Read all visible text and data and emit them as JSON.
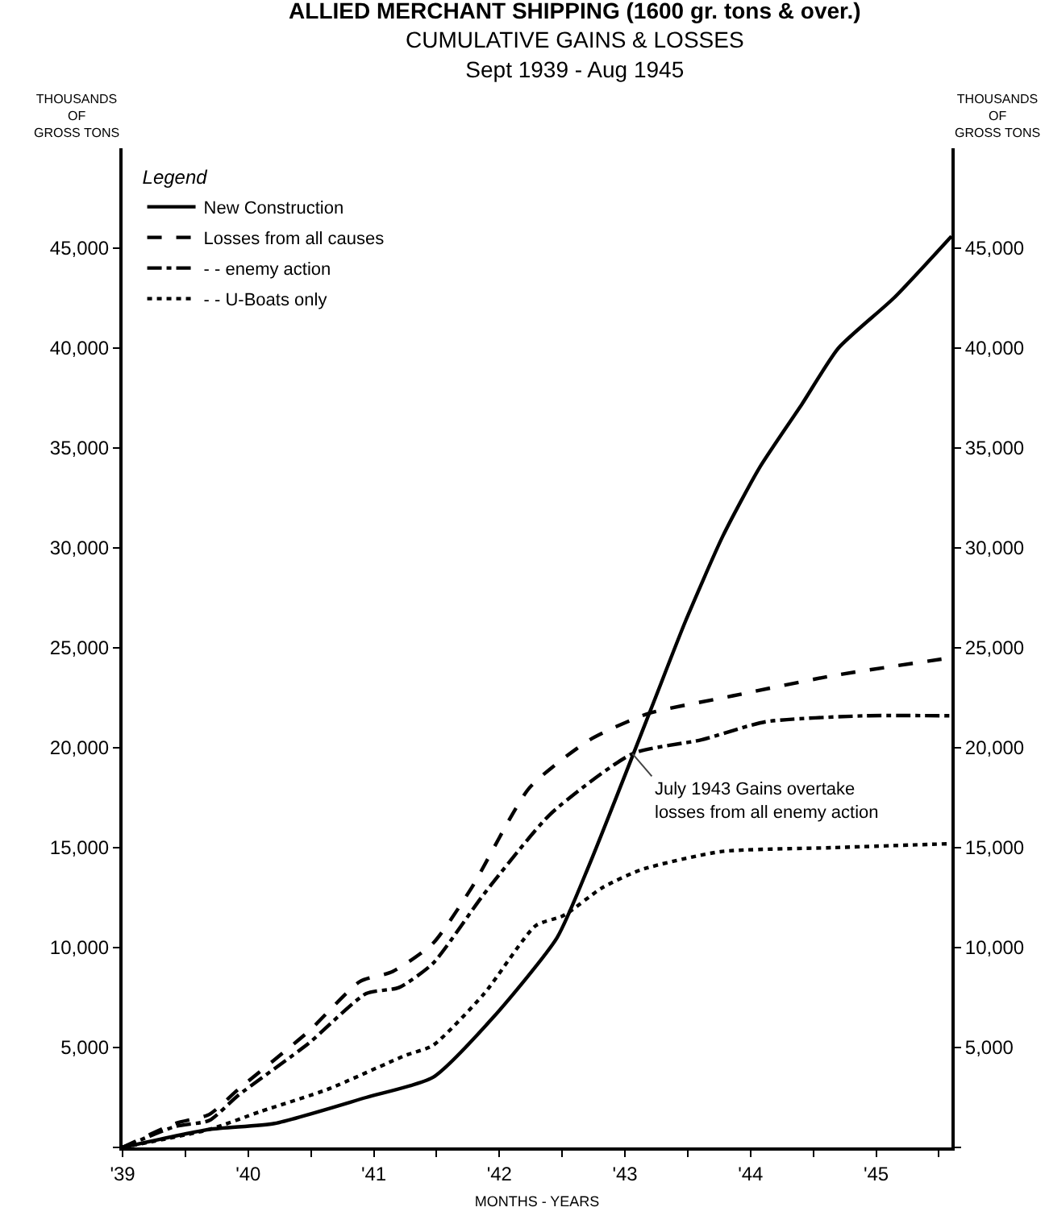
{
  "chart_data": {
    "type": "line",
    "title": "ALLIED MERCHANT SHIPPING (1600 gr. tons & over.)",
    "subtitle": "CUMULATIVE GAINS & LOSSES\nSept 1939 - Aug 1945",
    "xlabel": "MONTHS - YEARS",
    "ylabel": "THOUSANDS\nOF\nGROSS TONS",
    "y2label": "THOUSANDS\nOF\nGROSS TONS",
    "legend_title": "Legend",
    "legend": "top left",
    "grid": false,
    "marker": "none",
    "annotations": [
      {
        "text": "July 1943 Gains overtake\nlosses from all enemy action",
        "x": 1943.06,
        "y": 19700
      }
    ],
    "xlim": [
      1939,
      1945.6
    ],
    "xticks": [
      {
        "value": 1939,
        "label": "'39"
      },
      {
        "value": 1939.5,
        "label": null
      },
      {
        "value": 1940,
        "label": "'40"
      },
      {
        "value": 1940.5,
        "label": null
      },
      {
        "value": 1941,
        "label": "'41"
      },
      {
        "value": 1941.5,
        "label": null
      },
      {
        "value": 1942,
        "label": "'42"
      },
      {
        "value": 1942.5,
        "label": null
      },
      {
        "value": 1943,
        "label": "'43"
      },
      {
        "value": 1943.5,
        "label": null
      },
      {
        "value": 1944,
        "label": "'44"
      },
      {
        "value": 1944.5,
        "label": null
      },
      {
        "value": 1945,
        "label": "'45"
      },
      {
        "value": 1945.5,
        "label": null
      }
    ],
    "ylim": [
      0,
      50000
    ],
    "yticks": [
      {
        "value": 0,
        "label": null
      },
      {
        "value": 5000,
        "label": "5,000"
      },
      {
        "value": 10000,
        "label": "10,000"
      },
      {
        "value": 15000,
        "label": "15,000"
      },
      {
        "value": 20000,
        "label": "20,000"
      },
      {
        "value": 25000,
        "label": "25,000"
      },
      {
        "value": 30000,
        "label": "30,000"
      },
      {
        "value": 35000,
        "label": "35,000"
      },
      {
        "value": 40000,
        "label": "40,000"
      },
      {
        "value": 45000,
        "label": "45,000"
      }
    ],
    "y2lim": [
      0,
      50000
    ],
    "y2ticks": [
      {
        "value": 0,
        "label": null
      },
      {
        "value": 5000,
        "label": "5,000"
      },
      {
        "value": 10000,
        "label": "10,000"
      },
      {
        "value": 15000,
        "label": "15,000"
      },
      {
        "value": 20000,
        "label": "20,000"
      },
      {
        "value": 25000,
        "label": "25,000"
      },
      {
        "value": 30000,
        "label": "30,000"
      },
      {
        "value": 35000,
        "label": "35,000"
      },
      {
        "value": 40000,
        "label": "40,000"
      },
      {
        "value": 45000,
        "label": "45,000"
      }
    ],
    "series": [
      {
        "name": "New Construction",
        "color": "#000000",
        "line_style": "solid",
        "x": [
          1939.0,
          1939.69,
          1940.21,
          1940.94,
          1941.47,
          1941.95,
          1942.46,
          1942.72,
          1942.98,
          1943.23,
          1943.48,
          1943.78,
          1944.07,
          1944.41,
          1944.7,
          1945.14,
          1945.6
        ],
        "values": [
          0,
          900,
          1200,
          2500,
          3500,
          6500,
          10500,
          14200,
          18300,
          22300,
          26300,
          30600,
          34000,
          37200,
          40000,
          42500,
          45600
        ]
      },
      {
        "name": "Losses from all causes",
        "color": "#000000",
        "line_style": "dashed",
        "x": [
          1939.0,
          1939.42,
          1939.69,
          1939.92,
          1940.48,
          1940.89,
          1941.15,
          1941.47,
          1941.78,
          1942.24,
          1942.72,
          1943.18,
          1943.86,
          1944.65,
          1945.59
        ],
        "values": [
          0,
          1200,
          1650,
          2900,
          5800,
          8300,
          8800,
          10200,
          13000,
          18000,
          20400,
          21700,
          22600,
          23600,
          24500
        ]
      },
      {
        "name": "- - enemy action",
        "color": "#000000",
        "line_style": "dashdot",
        "x": [
          1939.0,
          1939.42,
          1939.69,
          1939.92,
          1940.48,
          1940.94,
          1941.2,
          1941.47,
          1941.88,
          1942.41,
          1943.06,
          1943.61,
          1944.12,
          1944.91,
          1945.59
        ],
        "values": [
          0,
          1050,
          1350,
          2600,
          5200,
          7700,
          8000,
          9200,
          12700,
          16700,
          19700,
          20400,
          21300,
          21600,
          21600
        ]
      },
      {
        "name": "- - U-Boats only",
        "color": "#000000",
        "line_style": "dotted",
        "x": [
          1939.0,
          1939.69,
          1940.1,
          1940.63,
          1941.25,
          1941.47,
          1941.88,
          1942.29,
          1942.51,
          1942.82,
          1943.13,
          1943.76,
          1944.65,
          1945.59
        ],
        "values": [
          0,
          900,
          1800,
          2900,
          4600,
          5100,
          7700,
          11100,
          11600,
          13000,
          13900,
          14800,
          15000,
          15200
        ]
      }
    ]
  }
}
